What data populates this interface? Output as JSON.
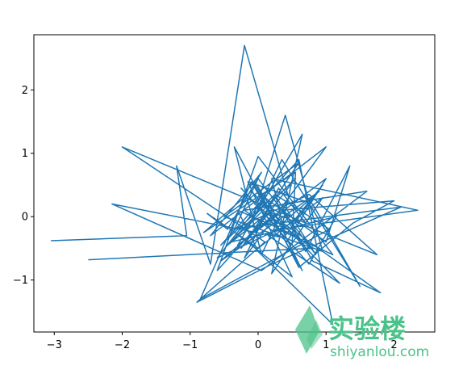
{
  "chart_data": {
    "type": "line",
    "title": "",
    "xlabel": "",
    "ylabel": "",
    "xlim": [
      -3.3,
      2.6
    ],
    "ylim": [
      -1.82,
      2.87
    ],
    "xticks": [
      -3,
      -2,
      -1,
      0,
      1,
      2
    ],
    "yticks": [
      -1,
      0,
      1,
      2
    ],
    "grid": false,
    "series": [
      {
        "color": "#1f77b4",
        "x": [
          -3.05,
          -1.05,
          -1.2,
          -0.7,
          -0.2,
          0.45,
          0.05,
          -0.35,
          0.3,
          1.1,
          0.0,
          -0.6,
          0.2,
          -0.45,
          0.55,
          -0.25,
          0.6,
          -0.5,
          0.95,
          0.4,
          -0.1,
          0.35,
          1.5,
          0.8,
          -0.15,
          0.5,
          -0.4,
          2.1,
          0.2,
          -0.9,
          0.1,
          -2.0,
          0.7,
          0.3,
          -0.2,
          1.0,
          -0.7,
          0.05,
          -0.45,
          -0.75,
          0.0,
          0.95,
          0.2,
          0.65,
          -0.3,
          0.4,
          0.85,
          0.0,
          -0.35,
          0.75,
          1.75,
          0.25,
          -0.55,
          0.9,
          0.15,
          1.2,
          -0.1,
          -0.8,
          0.55,
          0.5,
          -0.2,
          1.6,
          0.05,
          -2.15,
          0.45,
          1.0,
          -0.05,
          0.25,
          0.8,
          1.8,
          0.3,
          -0.05,
          0.6,
          1.4,
          2.0,
          0.35,
          0.7,
          1.35,
          1.0,
          0.1,
          -0.6,
          0.5,
          0.95,
          0.4,
          0.2,
          2.35,
          0.3,
          -0.25,
          0.75,
          1.15,
          -0.4,
          0.15,
          0.65,
          -0.1,
          -0.85,
          1.05,
          0.25,
          -0.55,
          0.6,
          1.1,
          0.0,
          -0.3,
          0.55,
          -0.05,
          0.8,
          -2.5
        ],
        "y": [
          -0.38,
          -0.3,
          0.8,
          -0.75,
          2.7,
          0.3,
          -0.6,
          1.1,
          -0.2,
          -0.6,
          0.95,
          -0.85,
          0.1,
          -0.45,
          0.6,
          -0.5,
          0.85,
          0.0,
          -0.55,
          1.6,
          -0.1,
          0.9,
          -1.1,
          0.2,
          0.55,
          -0.95,
          -0.2,
          0.15,
          -0.75,
          -1.35,
          -0.4,
          1.1,
          -0.1,
          0.45,
          -0.65,
          1.1,
          -0.3,
          0.7,
          -0.2,
          0.05,
          -0.5,
          0.3,
          -0.9,
          1.3,
          -0.45,
          0.15,
          -0.6,
          0.6,
          -0.2,
          0.35,
          -0.6,
          0.05,
          -0.7,
          0.4,
          -0.3,
          -1.05,
          0.4,
          -0.25,
          0.7,
          -0.45,
          0.1,
          0.4,
          -0.85,
          0.2,
          -0.35,
          0.6,
          -0.25,
          0.35,
          -0.7,
          -1.2,
          -0.05,
          0.55,
          -0.8,
          -0.1,
          0.25,
          0.1,
          -0.55,
          0.8,
          -0.4,
          0.3,
          -0.65,
          -0.1,
          0.5,
          -0.3,
          0.6,
          0.1,
          -0.2,
          0.45,
          -0.75,
          0.0,
          -0.4,
          0.25,
          -0.85,
          0.55,
          -1.3,
          -0.2,
          0.35,
          -0.45,
          0.9,
          -1.7,
          -0.55,
          0.1,
          -0.3,
          0.2,
          -0.5,
          -0.68
        ]
      }
    ]
  },
  "watermark": {
    "text_cn": "实验楼",
    "text_en": "shiyanlou.com",
    "color": "#4bc28a"
  }
}
